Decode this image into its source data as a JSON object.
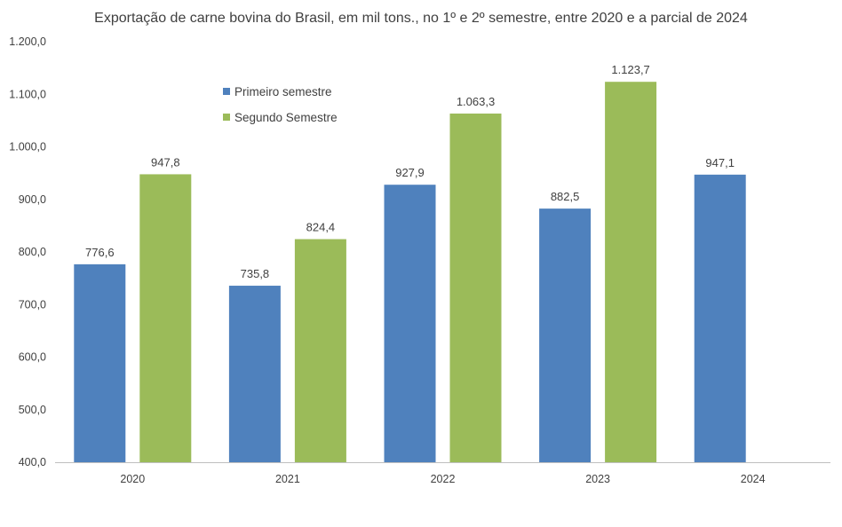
{
  "chart_data": {
    "type": "bar",
    "title": "Exportação de carne bovina do Brasil, em mil tons., no 1º e 2º semestre, entre 2020 e a parcial de 2024",
    "xlabel": "",
    "ylabel": "",
    "ylim": [
      400,
      1200
    ],
    "yticks": [
      400,
      500,
      600,
      700,
      800,
      900,
      1000,
      1100,
      1200
    ],
    "ytick_labels": [
      "400,0",
      "500,0",
      "600,0",
      "700,0",
      "800,0",
      "900,0",
      "1.000,0",
      "1.100,0",
      "1.200,0"
    ],
    "grid": false,
    "legend_position": "top-left, inside plot",
    "categories": [
      "2020",
      "2021",
      "2022",
      "2023",
      "2024"
    ],
    "series": [
      {
        "name": "Primeiro semestre",
        "color": "#4F81BD",
        "values": [
          776.6,
          735.8,
          927.9,
          882.5,
          947.1
        ],
        "labels": [
          "776,6",
          "735,8",
          "927,9",
          "882,5",
          "947,1"
        ]
      },
      {
        "name": "Segundo Semestre",
        "color": "#9BBB59",
        "values": [
          947.8,
          824.4,
          1063.3,
          1123.7,
          null
        ],
        "labels": [
          "947,8",
          "824,4",
          "1.063,3",
          "1.123,7",
          null
        ]
      }
    ]
  }
}
